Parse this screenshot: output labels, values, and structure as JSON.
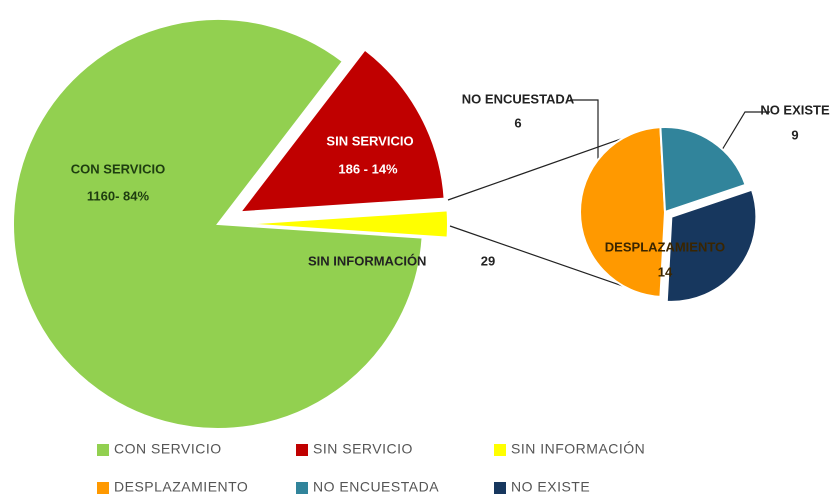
{
  "chart_data": {
    "type": "pie-of-pie",
    "main": {
      "categories": [
        "CON SERVICIO",
        "SIN SERVICIO",
        "SIN INFORMACIÓN"
      ],
      "values": [
        1160,
        186,
        29
      ],
      "value_labels": [
        "1160- 84%",
        "186 - 14%",
        null
      ],
      "colors": [
        "#92d050",
        "#c00000",
        "#ffff00"
      ]
    },
    "secondary": {
      "categories": [
        "DESPLAZAMIENTO",
        "NO ENCUESTADA",
        "NO EXISTE"
      ],
      "values": [
        14,
        6,
        9
      ],
      "colors": [
        "#ff9900",
        "#31849b",
        "#17375e"
      ]
    }
  }
}
